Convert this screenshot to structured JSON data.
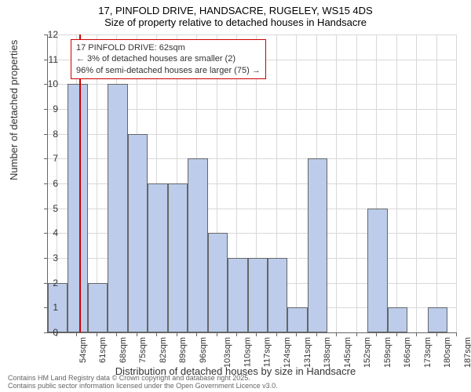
{
  "title": "17, PINFOLD DRIVE, HANDSACRE, RUGELEY, WS15 4DS",
  "subtitle": "Size of property relative to detached houses in Handsacre",
  "ylabel": "Number of detached properties",
  "xlabel": "Distribution of detached houses by size in Handsacre",
  "footnote1": "Contains HM Land Registry data © Crown copyright and database right 2025.",
  "footnote2": "Contains public sector information licensed under the Open Government Licence v3.0.",
  "legend": {
    "line1": "17 PINFOLD DRIVE: 62sqm",
    "line2": "← 3% of detached houses are smaller (2)",
    "line3": "96% of semi-detached houses are larger (75) →"
  },
  "chart": {
    "type": "histogram",
    "ylim": [
      0,
      12
    ],
    "ytick_step": 1,
    "bar_color": "#bcccea",
    "bar_border": "#666666",
    "grid_color": "#d8d8d8",
    "ref_line_color": "#cc0000",
    "ref_line_x": 62,
    "x_start": 51,
    "x_end": 194,
    "x_tick_start": 54,
    "x_tick_step": 7,
    "x_tick_suffix": "sqm",
    "bin_width": 7,
    "bins": [
      {
        "x": 51,
        "count": 2
      },
      {
        "x": 58,
        "count": 10
      },
      {
        "x": 65,
        "count": 2
      },
      {
        "x": 72,
        "count": 10
      },
      {
        "x": 79,
        "count": 8
      },
      {
        "x": 86,
        "count": 6
      },
      {
        "x": 93,
        "count": 6
      },
      {
        "x": 100,
        "count": 7
      },
      {
        "x": 107,
        "count": 4
      },
      {
        "x": 114,
        "count": 3
      },
      {
        "x": 121,
        "count": 3
      },
      {
        "x": 128,
        "count": 3
      },
      {
        "x": 135,
        "count": 1
      },
      {
        "x": 142,
        "count": 7
      },
      {
        "x": 163,
        "count": 5
      },
      {
        "x": 170,
        "count": 1
      },
      {
        "x": 184,
        "count": 1
      }
    ]
  }
}
